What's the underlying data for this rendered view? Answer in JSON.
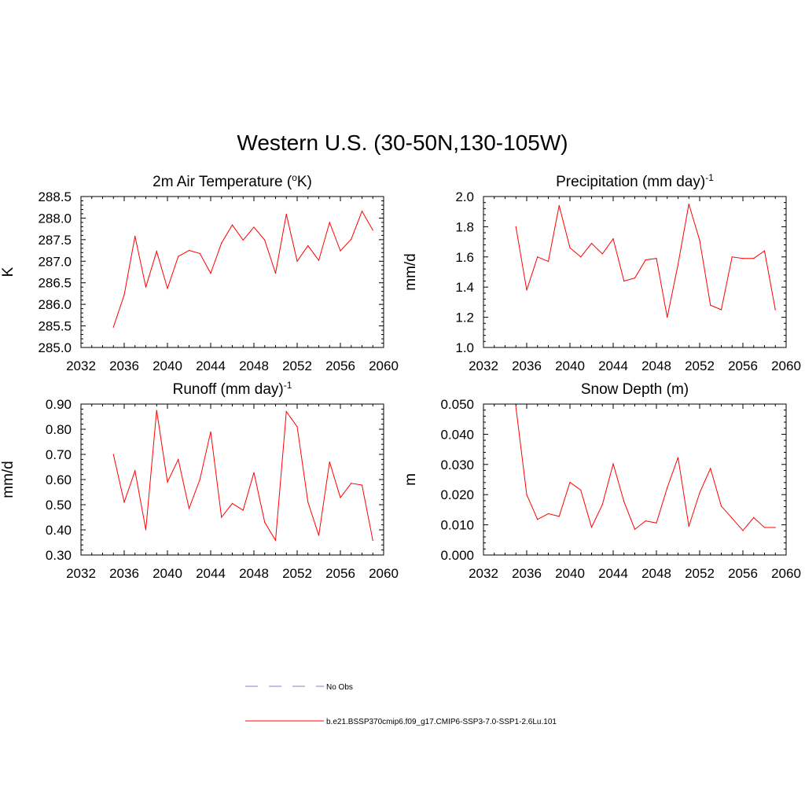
{
  "figure": {
    "title": "Western U.S. (30-50N,130-105W)"
  },
  "legend": {
    "entries": [
      {
        "label": "No Obs",
        "style": "dashed",
        "color": "#9b9bd6"
      },
      {
        "label": "b.e21.BSSP370cmip6.f09_g17.CMIP6-SSP3-7.0-SSP1-2.6Lu.101",
        "style": "solid",
        "color": "#ff0000"
      }
    ]
  },
  "chart_data": [
    {
      "type": "line",
      "title": {
        "main": "2m Air Temperature (",
        "sup_before": "o",
        "main2": "K)",
        "sup_after": ""
      },
      "ylabel": "K",
      "xlim": [
        2032,
        2060
      ],
      "ylim": [
        285.0,
        288.5
      ],
      "xticks": [
        "2032",
        "2036",
        "2040",
        "2044",
        "2048",
        "2052",
        "2056",
        "2060"
      ],
      "yticks": [
        "285.0",
        "285.5",
        "286.0",
        "286.5",
        "287.0",
        "287.5",
        "288.0",
        "288.5"
      ],
      "line_color": "#ff0000",
      "x": [
        2035,
        2036,
        2037,
        2038,
        2039,
        2040,
        2041,
        2042,
        2043,
        2044,
        2045,
        2046,
        2047,
        2048,
        2049,
        2050,
        2051,
        2052,
        2053,
        2054,
        2055,
        2056,
        2057,
        2058,
        2059
      ],
      "y": [
        285.47,
        286.22,
        287.58,
        286.4,
        287.23,
        286.37,
        287.11,
        287.25,
        287.18,
        286.72,
        287.42,
        287.84,
        287.49,
        287.79,
        287.49,
        286.72,
        288.09,
        287.0,
        287.36,
        287.02,
        287.9,
        287.24,
        287.51,
        288.16,
        287.72
      ]
    },
    {
      "type": "line",
      "title": {
        "main": "Precipitation (mm day",
        "sup_before": "",
        "main2": ")",
        "sup_after": "-1"
      },
      "ylabel": "mm/d",
      "xlim": [
        2032,
        2060
      ],
      "ylim": [
        1.0,
        2.0
      ],
      "xticks": [
        "2032",
        "2036",
        "2040",
        "2044",
        "2048",
        "2052",
        "2056",
        "2060"
      ],
      "yticks": [
        "1.0",
        "1.2",
        "1.4",
        "1.6",
        "1.8",
        "2.0"
      ],
      "line_color": "#ff0000",
      "x": [
        2035,
        2036,
        2037,
        2038,
        2039,
        2040,
        2041,
        2042,
        2043,
        2044,
        2045,
        2046,
        2047,
        2048,
        2049,
        2050,
        2051,
        2052,
        2053,
        2054,
        2055,
        2056,
        2057,
        2058,
        2059
      ],
      "y": [
        1.8,
        1.38,
        1.6,
        1.57,
        1.94,
        1.66,
        1.6,
        1.69,
        1.62,
        1.72,
        1.44,
        1.46,
        1.58,
        1.59,
        1.2,
        1.55,
        1.95,
        1.71,
        1.28,
        1.25,
        1.6,
        1.59,
        1.59,
        1.64,
        1.25
      ]
    },
    {
      "type": "line",
      "title": {
        "main": "Runoff (mm day",
        "sup_before": "",
        "main2": ")",
        "sup_after": "-1"
      },
      "ylabel": "mm/d",
      "xlim": [
        2032,
        2060
      ],
      "ylim": [
        0.3,
        0.9
      ],
      "xticks": [
        "2032",
        "2036",
        "2040",
        "2044",
        "2048",
        "2052",
        "2056",
        "2060"
      ],
      "yticks": [
        "0.30",
        "0.40",
        "0.50",
        "0.60",
        "0.70",
        "0.80",
        "0.90"
      ],
      "line_color": "#ff0000",
      "x": [
        2035,
        2036,
        2037,
        2038,
        2039,
        2040,
        2041,
        2042,
        2043,
        2044,
        2045,
        2046,
        2047,
        2048,
        2049,
        2050,
        2051,
        2052,
        2053,
        2054,
        2055,
        2056,
        2057,
        2058,
        2059
      ],
      "y": [
        0.7,
        0.51,
        0.635,
        0.4,
        0.875,
        0.59,
        0.68,
        0.485,
        0.6,
        0.79,
        0.45,
        0.505,
        0.478,
        0.628,
        0.43,
        0.358,
        0.87,
        0.81,
        0.51,
        0.378,
        0.67,
        0.528,
        0.585,
        0.578,
        0.358
      ]
    },
    {
      "type": "line",
      "title": {
        "main": "Snow Depth (m)",
        "sup_before": "",
        "main2": "",
        "sup_after": ""
      },
      "ylabel": "m",
      "xlim": [
        2032,
        2060
      ],
      "ylim": [
        0.0,
        0.05
      ],
      "xticks": [
        "2032",
        "2036",
        "2040",
        "2044",
        "2048",
        "2052",
        "2056",
        "2060"
      ],
      "yticks": [
        "0.000",
        "0.010",
        "0.020",
        "0.030",
        "0.040",
        "0.050"
      ],
      "line_color": "#ff0000",
      "x": [
        2035,
        2036,
        2037,
        2038,
        2039,
        2040,
        2041,
        2042,
        2043,
        2044,
        2045,
        2046,
        2047,
        2048,
        2049,
        2050,
        2051,
        2052,
        2053,
        2054,
        2055,
        2056,
        2057,
        2058,
        2059
      ],
      "y": [
        0.049,
        0.02,
        0.0118,
        0.0137,
        0.0128,
        0.0241,
        0.0215,
        0.0092,
        0.0167,
        0.0302,
        0.0177,
        0.0085,
        0.0113,
        0.0106,
        0.0223,
        0.0323,
        0.0095,
        0.0206,
        0.0287,
        0.0162,
        0.0122,
        0.0081,
        0.0124,
        0.0091,
        0.0091
      ]
    }
  ]
}
